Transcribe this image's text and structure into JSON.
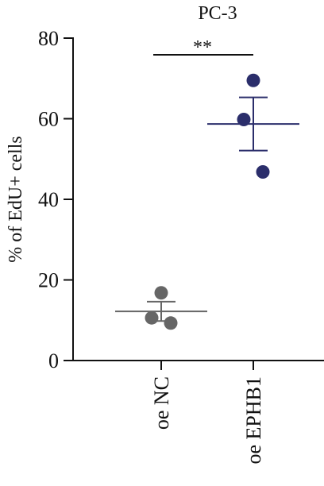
{
  "chart_data": {
    "type": "scatter",
    "title": "PC-3",
    "ylabel": "% of EdU+ cells",
    "xlabel": "",
    "ylim": [
      0,
      80
    ],
    "yticks": [
      0,
      20,
      40,
      60,
      80
    ],
    "categories": [
      "oe NC",
      "oe EPHB1"
    ],
    "groups": [
      {
        "category": "oe NC",
        "points": [
          16.8,
          10.6,
          9.3
        ],
        "mean": 12.2,
        "sem": 2.4,
        "color": "#666666"
      },
      {
        "category": "oe EPHB1",
        "points": [
          69.5,
          59.8,
          46.8
        ],
        "mean": 58.7,
        "sem": 6.6,
        "color": "#2b2e6b"
      }
    ],
    "significance": {
      "between": [
        "oe NC",
        "oe EPHB1"
      ],
      "label": "**"
    },
    "grid": false,
    "legend": "none"
  }
}
